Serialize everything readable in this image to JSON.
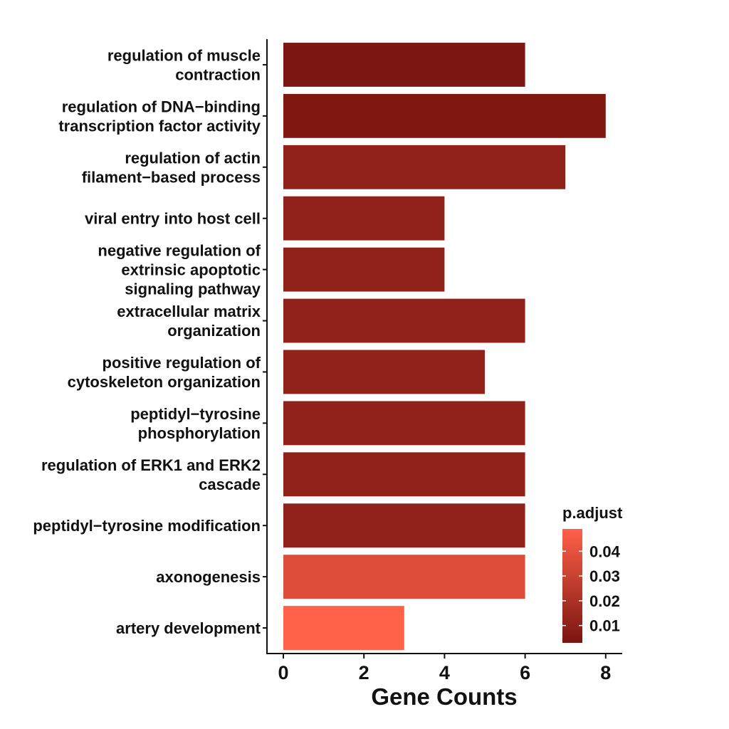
{
  "chart_data": {
    "type": "bar",
    "orientation": "horizontal",
    "categories": [
      "regulation of muscle\ncontraction",
      "regulation of DNA−binding\ntranscription factor activity",
      "regulation of actin\nfilament−based process",
      "viral entry into host cell",
      "negative regulation of\nextrinsic apoptotic\nsignaling pathway",
      "extracellular matrix\norganization",
      "positive regulation of\ncytoskeleton organization",
      "peptidyl−tyrosine\nphosphorylation",
      "regulation of ERK1 and ERK2\ncascade",
      "peptidyl−tyrosine modification",
      "axonogenesis",
      "artery development"
    ],
    "values": [
      6,
      8,
      7,
      4,
      4,
      6,
      5,
      6,
      6,
      6,
      6,
      3
    ],
    "p_adjust": [
      0.004,
      0.005,
      0.011,
      0.011,
      0.011,
      0.011,
      0.011,
      0.011,
      0.011,
      0.011,
      0.037,
      0.049
    ],
    "xlabel": "Gene Counts",
    "ylabel": "",
    "xlim": [
      -0.4,
      8.4
    ],
    "xticks": [
      0,
      2,
      4,
      6,
      8
    ],
    "grid": false,
    "legend": {
      "title": "p.adjust",
      "placement": "bottom-right",
      "range": [
        0.003,
        0.049
      ],
      "ticks": [
        "0.04",
        "0.03",
        "0.02",
        "0.01"
      ],
      "tick_values": [
        0.04,
        0.03,
        0.02,
        0.01
      ],
      "color_low": "#7a1510",
      "color_high": "#ff6149"
    }
  }
}
